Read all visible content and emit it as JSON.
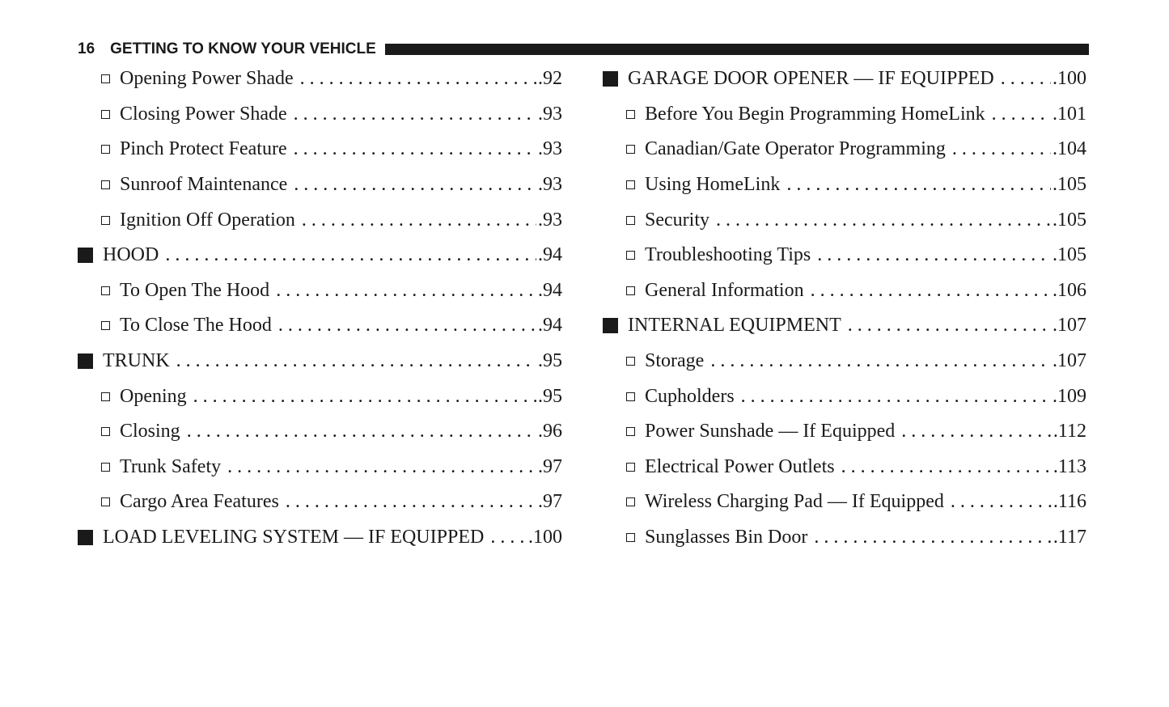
{
  "header": {
    "page_number": "16",
    "title": "GETTING TO KNOW YOUR VEHICLE"
  },
  "left": [
    {
      "level": 2,
      "label": "Opening Power Shade",
      "page": ".92"
    },
    {
      "level": 2,
      "label": "Closing Power Shade",
      "page": ".93"
    },
    {
      "level": 2,
      "label": "Pinch Protect Feature",
      "page": ".93"
    },
    {
      "level": 2,
      "label": "Sunroof Maintenance",
      "page": ".93"
    },
    {
      "level": 2,
      "label": "Ignition Off Operation",
      "page": ".93"
    },
    {
      "level": 1,
      "label": "HOOD",
      "page": ".94"
    },
    {
      "level": 2,
      "label": "To Open The Hood",
      "page": ".94"
    },
    {
      "level": 2,
      "label": "To Close The Hood",
      "page": ".94"
    },
    {
      "level": 1,
      "label": "TRUNK",
      "page": ".95"
    },
    {
      "level": 2,
      "label": "Opening",
      "page": ".95"
    },
    {
      "level": 2,
      "label": "Closing",
      "page": ".96"
    },
    {
      "level": 2,
      "label": "Trunk Safety",
      "page": ".97"
    },
    {
      "level": 2,
      "label": "Cargo Area Features",
      "page": ".97"
    },
    {
      "level": 1,
      "label": "LOAD LEVELING SYSTEM — IF EQUIPPED",
      "page": ".100"
    }
  ],
  "right": [
    {
      "level": 1,
      "label": "GARAGE DOOR OPENER — IF EQUIPPED",
      "page": ".100"
    },
    {
      "level": 2,
      "label": "Before You Begin Programming HomeLink",
      "page": ".101"
    },
    {
      "level": 2,
      "label": "Canadian/Gate Operator Programming",
      "page": ".104"
    },
    {
      "level": 2,
      "label": "Using HomeLink",
      "page": ".105"
    },
    {
      "level": 2,
      "label": "Security",
      "page": ".105"
    },
    {
      "level": 2,
      "label": "Troubleshooting Tips",
      "page": ".105"
    },
    {
      "level": 2,
      "label": "General Information",
      "page": ".106"
    },
    {
      "level": 1,
      "label": "INTERNAL EQUIPMENT",
      "page": ".107"
    },
    {
      "level": 2,
      "label": "Storage",
      "page": ".107"
    },
    {
      "level": 2,
      "label": "Cupholders",
      "page": ".109"
    },
    {
      "level": 2,
      "label": "Power Sunshade — If Equipped",
      "page": ".112"
    },
    {
      "level": 2,
      "label": "Electrical Power Outlets",
      "page": ".113"
    },
    {
      "level": 2,
      "label": "Wireless Charging Pad — If Equipped",
      "page": ".116"
    },
    {
      "level": 2,
      "label": "Sunglasses Bin Door",
      "page": ".117"
    }
  ]
}
